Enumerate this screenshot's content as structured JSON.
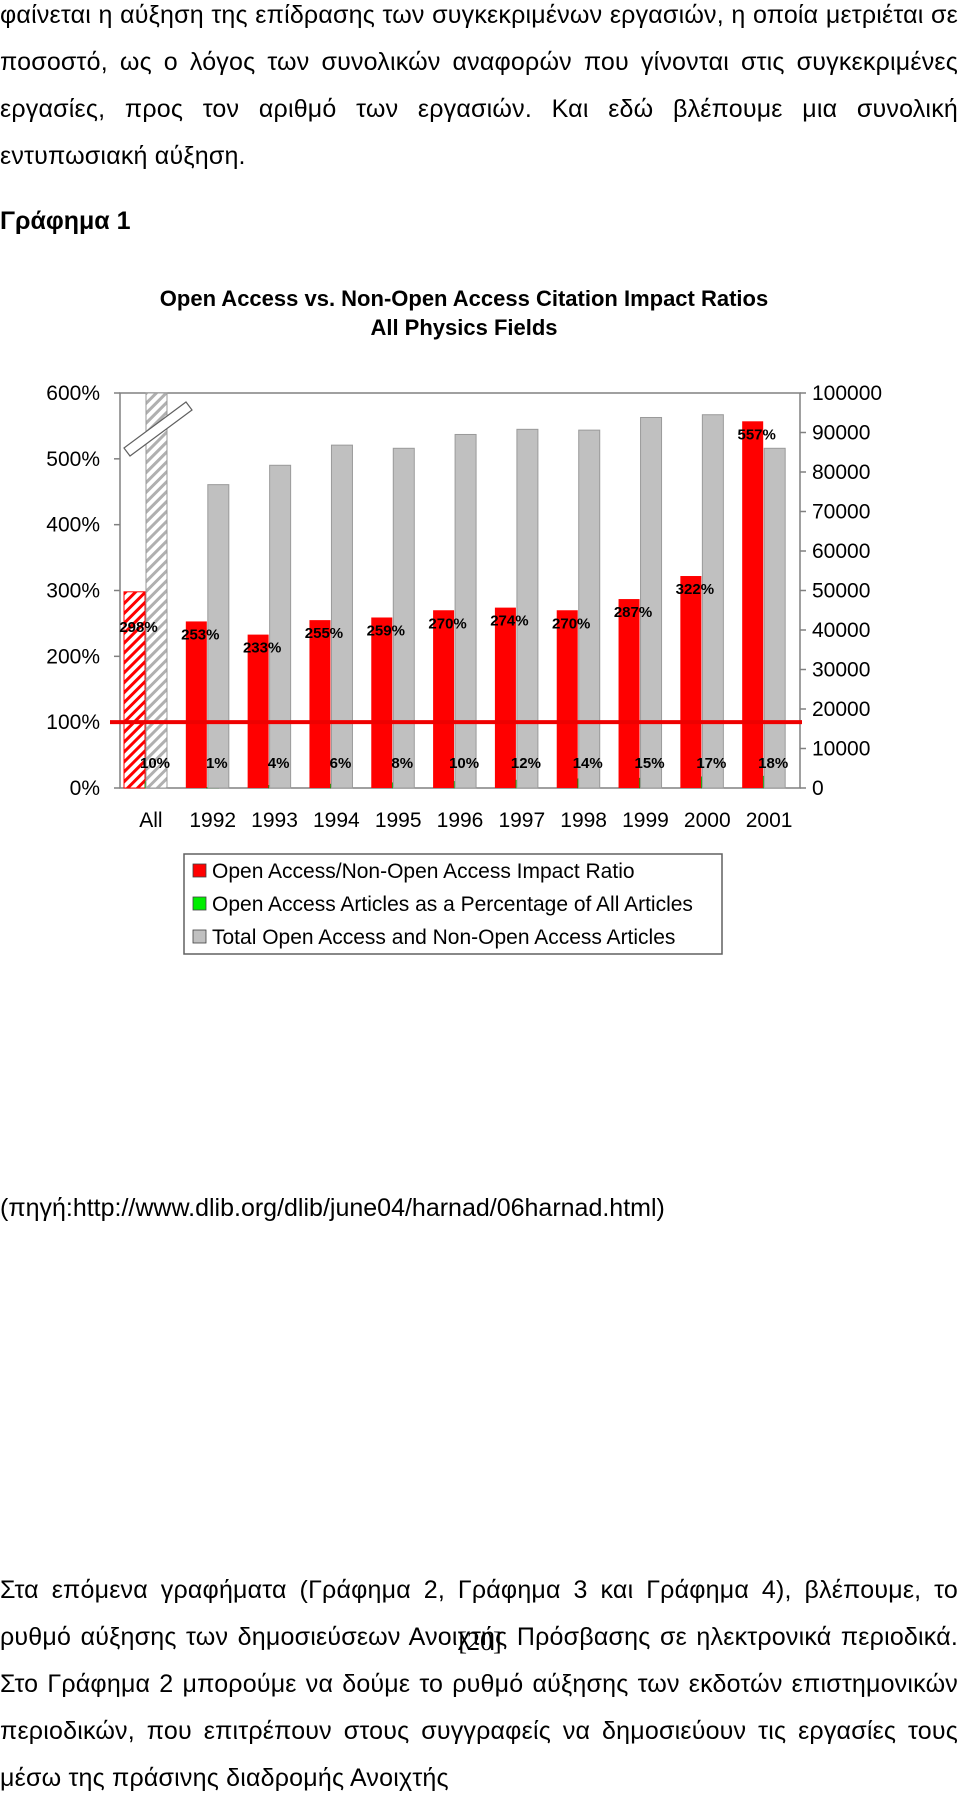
{
  "paragraph_top": "φαίνεται η αύξηση της επίδρασης των συγκεκριμένων εργασιών, η οποία μετριέται σε ποσοστό, ως ο λόγος των συνολικών αναφορών που γίνονται στις συγκεκριμένες εργασίες, προς τον αριθμό των εργασιών. Και εδώ βλέπουμε μια συνολική εντυπωσιακή αύξηση.",
  "figure_heading": "Γράφημα 1",
  "source_line": "(πηγή:http://www.dlib.org/dlib/june04/harnad/06harnad.html)",
  "paragraph_bottom": "Στα επόμενα γραφήματα (Γράφημα 2, Γράφημα 3 και Γράφημα 4), βλέπουμε, το ρυθμό αύξησης των δημοσιεύσεων Ανοιχτής Πρόσβασης σε ηλεκτρονικά περιοδικά. Στο Γράφημα 2 μπορούμε να δούμε το ρυθμό αύξησης των εκδοτών επιστημονικών περιοδικών, που επιτρέπουν στους συγγραφείς να δημοσιεύουν τις εργασίες τους μέσω της πράσινης διαδρομής Ανοιχτής",
  "page_number": "[20]",
  "chart_data": {
    "type": "bar",
    "title": "Open Access vs. Non-Open Access Citation Impact Ratios",
    "subtitle": "All Physics Fields",
    "categories": [
      "All",
      "1992",
      "1993",
      "1994",
      "1995",
      "1996",
      "1997",
      "1998",
      "1999",
      "2000",
      "2001"
    ],
    "y_left_ticks": [
      "0%",
      "100%",
      "200%",
      "300%",
      "400%",
      "500%",
      "600%"
    ],
    "y_left_range": [
      0,
      600
    ],
    "y_right_ticks": [
      "0",
      "10000",
      "20000",
      "30000",
      "40000",
      "50000",
      "60000",
      "70000",
      "80000",
      "90000",
      "100000"
    ],
    "y_right_range": [
      0,
      100000
    ],
    "series": [
      {
        "name": "Open Access/Non-Open Access Impact Ratio",
        "axis": "left",
        "color": "#ff0000",
        "values": [
          298,
          253,
          233,
          255,
          259,
          270,
          274,
          270,
          287,
          322,
          557
        ],
        "labels": [
          "298%",
          "253%",
          "233%",
          "255%",
          "259%",
          "270%",
          "274%",
          "270%",
          "287%",
          "322%",
          "557%"
        ]
      },
      {
        "name": "Open Access Articles as a Percentage of All Articles",
        "axis": "left",
        "color": "#00ee00",
        "values": [
          10,
          1,
          4,
          6,
          8,
          10,
          12,
          14,
          15,
          17,
          18
        ],
        "labels": [
          "10%",
          "1%",
          "4%",
          "6%",
          "8%",
          "10%",
          "12%",
          "14%",
          "15%",
          "17%",
          "18%"
        ]
      },
      {
        "name": "Total Open Access and Non-Open Access Articles",
        "axis": "right",
        "color": "#c0c0c0",
        "values": [
          100000,
          76800,
          81700,
          86800,
          86000,
          89500,
          90800,
          90600,
          93800,
          94500,
          86000
        ]
      }
    ],
    "reference_line": {
      "value": 100,
      "axis": "left",
      "color": "#ee0000"
    },
    "legend_position": "bottom",
    "grid": false
  }
}
